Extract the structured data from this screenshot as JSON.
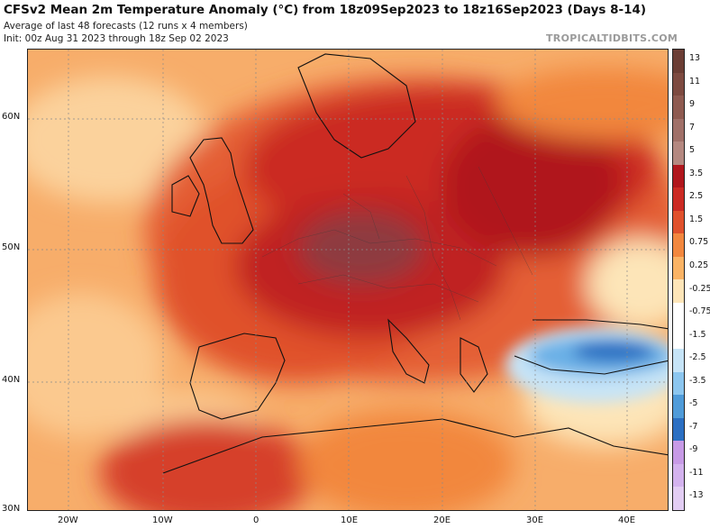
{
  "header": {
    "title": "CFSv2 Mean 2m Temperature Anomaly (°C) from 18z09Sep2023 to 18z16Sep2023 (Days 8-14)",
    "subtitle": "Average of last 48 forecasts (12 runs x 4 members)",
    "init": "Init: 00z Aug 31 2023 through 18z Sep 02 2023",
    "brand": "TROPICALTIDBITS.COM"
  },
  "map": {
    "region": "Europe",
    "lat_labels": [
      "60N",
      "50N",
      "40N",
      "30N"
    ],
    "lon_labels": [
      "20W",
      "10W",
      "0",
      "10E",
      "20E",
      "30E",
      "40E"
    ]
  },
  "colorbar": {
    "labels": [
      "13",
      "11",
      "9",
      "7",
      "5",
      "3.5",
      "2.5",
      "1.5",
      "0.75",
      "0.25",
      "-0.25",
      "-0.75",
      "-1.5",
      "-2.5",
      "-3.5",
      "-5",
      "-7",
      "-9",
      "-11",
      "-13"
    ],
    "colors": [
      "#6b3d34",
      "#7d4a40",
      "#8e5a50",
      "#a07068",
      "#b48880",
      "#b0161c",
      "#cb2a23",
      "#e0512c",
      "#f2873e",
      "#fab365",
      "#fde5b8",
      "#ffffff",
      "#ffffff",
      "#c6e4f7",
      "#8cc6ef",
      "#4f9bd9",
      "#2b6fc2",
      "#c79ae6",
      "#d3b2ee",
      "#e2cdf3"
    ]
  }
}
